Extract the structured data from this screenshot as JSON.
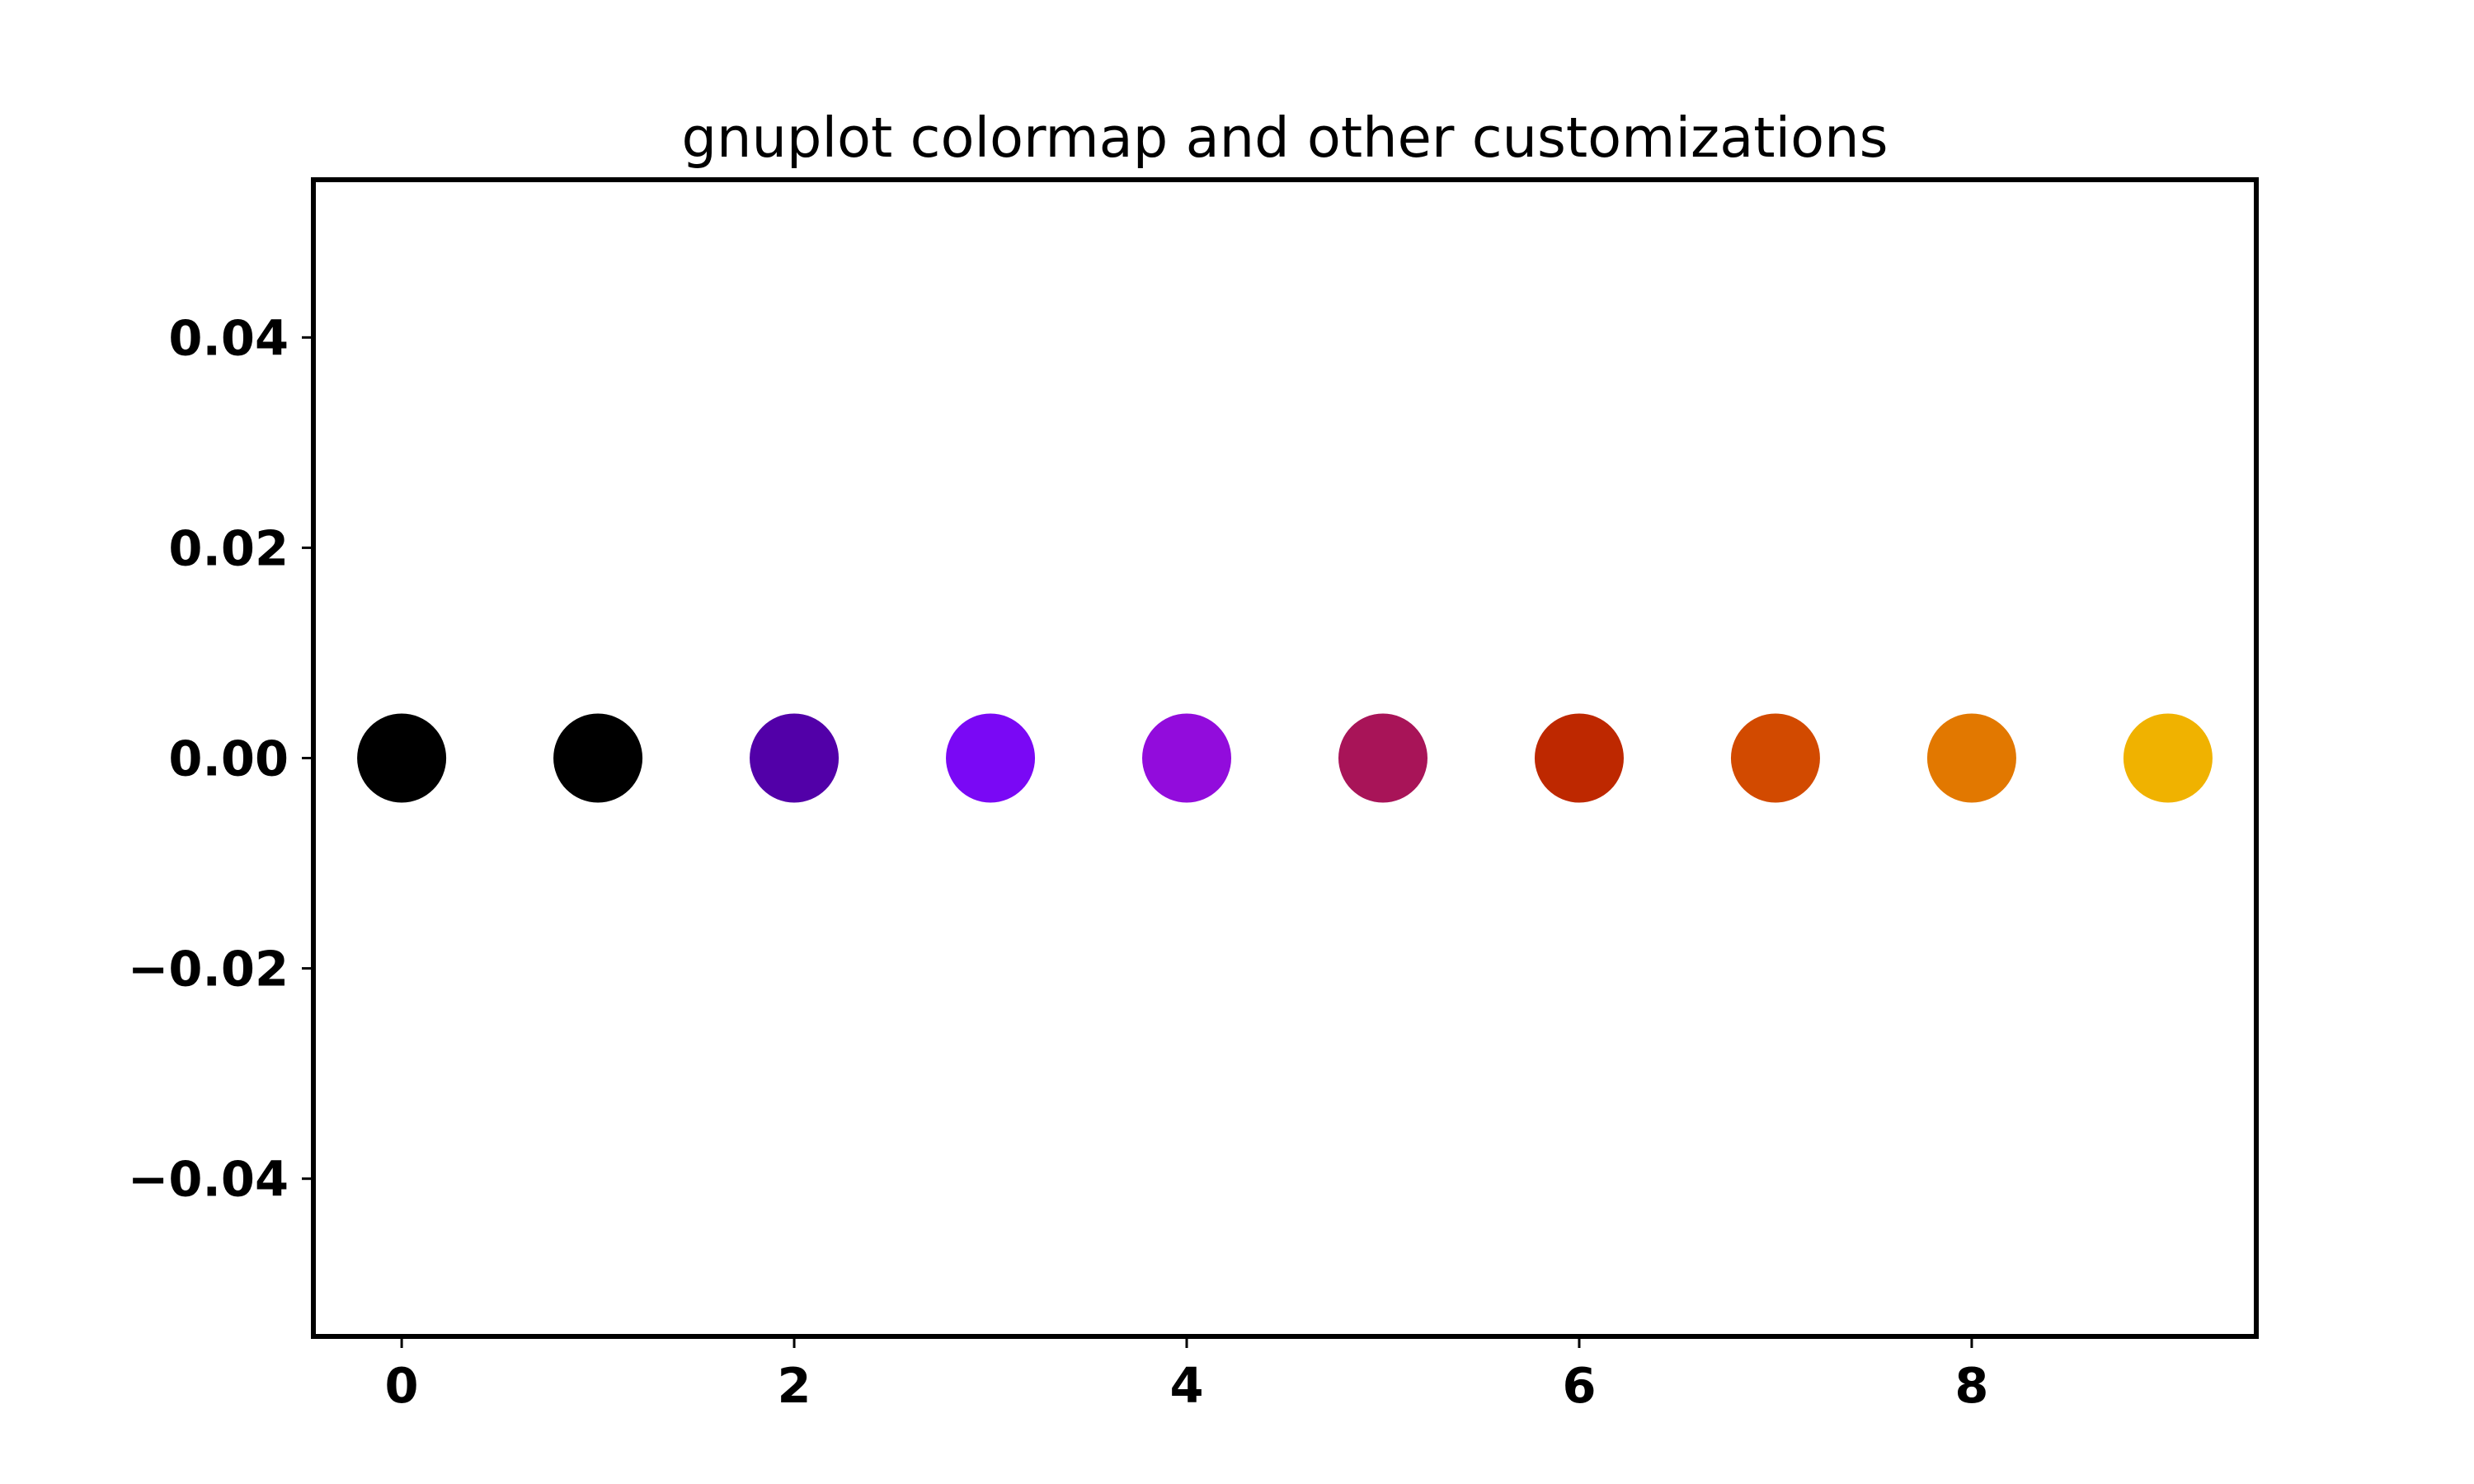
{
  "chart_data": {
    "type": "scatter",
    "title": "gnuplot colormap and other customizations",
    "xlabel": "",
    "ylabel": "",
    "xlim": [
      -0.45,
      9.45
    ],
    "ylim": [
      -0.055,
      0.055
    ],
    "x_ticks": [
      0,
      2,
      4,
      6,
      8
    ],
    "x_tick_labels": [
      "0",
      "2",
      "4",
      "6",
      "8"
    ],
    "y_ticks": [
      0.04,
      0.02,
      0.0,
      -0.02,
      -0.04
    ],
    "y_tick_labels": [
      "0.04",
      "0.02",
      "0.00",
      "−0.02",
      "−0.04"
    ],
    "grid": false,
    "colormap": "gnuplot",
    "x": [
      0,
      1,
      2,
      3,
      4,
      5,
      6,
      7,
      8,
      9
    ],
    "y": [
      0,
      0,
      0,
      0,
      0,
      0,
      0,
      0,
      0,
      0
    ],
    "colors": [
      "#000000",
      "#000000",
      "#5200a8",
      "#7a08f5",
      "#920cdc",
      "#a81458",
      "#be2800",
      "#d24a00",
      "#e27800",
      "#f0b200"
    ]
  }
}
